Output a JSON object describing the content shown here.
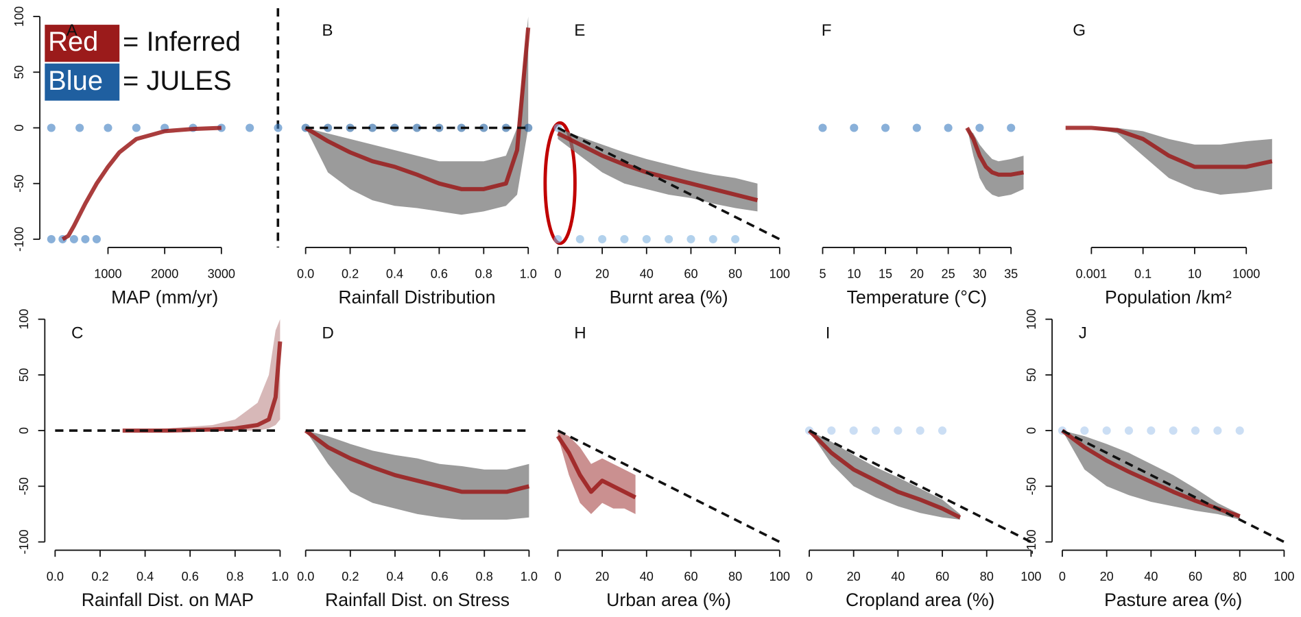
{
  "legend": [
    {
      "label": "Red",
      "text": "= Inferred",
      "color": "#9b1b1b"
    },
    {
      "label": "Blue",
      "text": "= JULES",
      "color": "#1f5fa0"
    }
  ],
  "chart_data": [
    {
      "type": "line",
      "label": "A",
      "xlabel": "MAP (mm/yr)",
      "xlim": [
        -100,
        4100
      ],
      "xticks": [
        1000,
        2000,
        3000
      ],
      "ylim": [
        -100,
        100
      ],
      "yticks": [
        -100,
        -50,
        0,
        50,
        100
      ],
      "x": [
        200,
        300,
        400,
        600,
        800,
        1000,
        1200,
        1500,
        2000,
        2500,
        3000
      ],
      "series": [
        {
          "color": "#9b1b1b",
          "values": [
            -100,
            -97,
            -88,
            -68,
            -50,
            -35,
            -22,
            -10,
            -3,
            -1,
            0
          ]
        }
      ],
      "points": {
        "color": "#3a7cc0",
        "x": [
          0,
          500,
          1000,
          1500,
          2000,
          2500,
          3000,
          3500,
          4000,
          0,
          200,
          400,
          600,
          800
        ],
        "values": [
          0,
          0,
          0,
          0,
          0,
          0,
          0,
          0,
          0,
          -100,
          -100,
          -100,
          -100,
          -100
        ]
      }
    },
    {
      "type": "line",
      "label": "B",
      "xlabel": "Rainfall Distribution",
      "xlim": [
        -0.02,
        1.02
      ],
      "xticks": [
        {
          "value": 0,
          "label": "0.0"
        },
        0.2,
        0.4,
        0.6,
        0.8,
        {
          "value": 1,
          "label": "1.0"
        }
      ],
      "ylim": [
        -100,
        100
      ],
      "x": [
        0,
        0.1,
        0.2,
        0.3,
        0.4,
        0.5,
        0.6,
        0.7,
        0.8,
        0.9,
        0.95,
        1
      ],
      "bands": [
        {
          "color": "#7a7a7a",
          "lower": [
            0,
            -40,
            -55,
            -65,
            -70,
            -72,
            -75,
            -78,
            -75,
            -70,
            -60,
            0
          ],
          "upper": [
            0,
            -5,
            -10,
            -15,
            -20,
            -25,
            -30,
            -30,
            -30,
            -25,
            0,
            100
          ]
        }
      ],
      "series": [
        {
          "color": "#9b1b1b",
          "values": [
            0,
            -12,
            -22,
            -30,
            -35,
            -42,
            -50,
            -55,
            -55,
            -50,
            -20,
            90
          ]
        }
      ],
      "reference": {
        "x": [
          0,
          1
        ],
        "values": [
          0,
          0
        ]
      },
      "points": {
        "color": "#1f5fa0",
        "x": [
          0,
          0.1,
          0.2,
          0.3,
          0.4,
          0.5,
          0.6,
          0.7,
          0.8,
          0.9,
          1
        ],
        "values": [
          0,
          0,
          0,
          0,
          0,
          0,
          0,
          0,
          0,
          0,
          0
        ]
      }
    },
    {
      "type": "line",
      "label": "E",
      "xlabel": "Burnt area (%)",
      "xlim": [
        -2,
        102
      ],
      "xticks": [
        0,
        20,
        40,
        60,
        80,
        100
      ],
      "ylim": [
        -100,
        100
      ],
      "x": [
        0,
        10,
        20,
        30,
        40,
        50,
        60,
        70,
        80,
        90
      ],
      "bands": [
        {
          "color": "#7a7a7a",
          "lower": [
            -10,
            -25,
            -40,
            -50,
            -55,
            -60,
            -63,
            -68,
            -72,
            -75
          ],
          "upper": [
            0,
            -8,
            -15,
            -22,
            -28,
            -33,
            -38,
            -42,
            -45,
            -50
          ]
        }
      ],
      "series": [
        {
          "color": "#9b1b1b",
          "values": [
            -5,
            -15,
            -25,
            -33,
            -40,
            -45,
            -50,
            -55,
            -60,
            -65
          ]
        }
      ],
      "reference": {
        "x": [
          0,
          100
        ],
        "values": [
          0,
          -100
        ]
      },
      "points": {
        "color": "#7fb2e0",
        "x": [
          0,
          0,
          10,
          20,
          30,
          40,
          50,
          60,
          70,
          80
        ],
        "values": [
          0,
          -100,
          -100,
          -100,
          -100,
          -100,
          -100,
          -100,
          -100,
          -100
        ]
      }
    },
    {
      "type": "line",
      "label": "F",
      "xlabel": "Temperature (°C)",
      "xlim": [
        1.5,
        38.5
      ],
      "xticks": [
        5,
        10,
        15,
        20,
        25,
        30,
        35
      ],
      "ylim": [
        -100,
        100
      ],
      "x": [
        28,
        29,
        30,
        31,
        32,
        33,
        35,
        37
      ],
      "bands": [
        {
          "color": "#7a7a7a",
          "lower": [
            0,
            -25,
            -45,
            -55,
            -60,
            -62,
            -60,
            -55
          ],
          "upper": [
            0,
            -5,
            -15,
            -22,
            -28,
            -30,
            -28,
            -25
          ]
        }
      ],
      "series": [
        {
          "color": "#9b1b1b",
          "values": [
            0,
            -10,
            -25,
            -35,
            -40,
            -42,
            -42,
            -40
          ]
        }
      ],
      "points": {
        "color": "#3a7cc0",
        "x": [
          5,
          10,
          15,
          20,
          25,
          30,
          35
        ],
        "values": [
          0,
          0,
          0,
          0,
          0,
          0,
          0
        ]
      }
    },
    {
      "type": "line",
      "label": "G",
      "xlabel": "Population /km²",
      "log": true,
      "xlim": [
        3e-05,
        30000
      ],
      "xticks": [
        0.001,
        0.1,
        10,
        1000
      ],
      "ylim": [
        -100,
        100
      ],
      "x": [
        0.0001,
        0.001,
        0.01,
        0.1,
        1,
        10,
        100,
        1000,
        10000
      ],
      "bands": [
        {
          "color": "#7a7a7a",
          "lower": [
            0,
            0,
            -5,
            -25,
            -45,
            -55,
            -60,
            -58,
            -55
          ],
          "upper": [
            0,
            0,
            0,
            -3,
            -10,
            -15,
            -15,
            -12,
            -10
          ]
        }
      ],
      "series": [
        {
          "color": "#9b1b1b",
          "values": [
            0,
            0,
            -2,
            -10,
            -25,
            -35,
            -35,
            -35,
            -30
          ]
        }
      ]
    },
    {
      "type": "line",
      "label": "C",
      "xlabel": "Rainfall Dist. on MAP",
      "xlim": [
        -0.02,
        1.02
      ],
      "xticks": [
        {
          "value": 0,
          "label": "0.0"
        },
        0.2,
        0.4,
        0.6,
        0.8,
        {
          "value": 1,
          "label": "1.0"
        }
      ],
      "ylim": [
        -100,
        100
      ],
      "yticks": [
        -100,
        -50,
        0,
        50,
        100
      ],
      "x": [
        0.3,
        0.5,
        0.7,
        0.8,
        0.9,
        0.95,
        0.98,
        1
      ],
      "bands": [
        {
          "color": "#c9a0a0",
          "lower": [
            0,
            0,
            0,
            0,
            0,
            2,
            5,
            10
          ],
          "upper": [
            0,
            2,
            5,
            10,
            25,
            50,
            90,
            100
          ]
        }
      ],
      "series": [
        {
          "color": "#9b1b1b",
          "values": [
            0,
            0,
            1,
            2,
            5,
            10,
            30,
            80
          ]
        }
      ],
      "reference": {
        "x": [
          0,
          1
        ],
        "values": [
          0,
          0
        ]
      }
    },
    {
      "type": "line",
      "label": "D",
      "xlabel": "Rainfall Dist. on Stress",
      "xlim": [
        -0.02,
        1.02
      ],
      "xticks": [
        {
          "value": 0,
          "label": "0.0"
        },
        0.2,
        0.4,
        0.6,
        0.8,
        {
          "value": 1,
          "label": "1.0"
        }
      ],
      "ylim": [
        -100,
        100
      ],
      "x": [
        0,
        0.1,
        0.2,
        0.3,
        0.4,
        0.5,
        0.6,
        0.7,
        0.8,
        0.9,
        1
      ],
      "bands": [
        {
          "color": "#7a7a7a",
          "lower": [
            0,
            -30,
            -55,
            -65,
            -70,
            -75,
            -78,
            -80,
            -80,
            -80,
            -78
          ],
          "upper": [
            0,
            -5,
            -12,
            -18,
            -22,
            -25,
            -30,
            -32,
            -35,
            -35,
            -30
          ]
        }
      ],
      "series": [
        {
          "color": "#9b1b1b",
          "values": [
            0,
            -15,
            -25,
            -33,
            -40,
            -45,
            -50,
            -55,
            -55,
            -55,
            -50
          ]
        }
      ],
      "reference": {
        "x": [
          0,
          1
        ],
        "values": [
          0,
          0
        ]
      }
    },
    {
      "type": "line",
      "label": "H",
      "xlabel": "Urban area (%)",
      "xlim": [
        -2,
        102
      ],
      "xticks": [
        0,
        20,
        40,
        60,
        80,
        100
      ],
      "ylim": [
        -100,
        100
      ],
      "x": [
        0,
        5,
        10,
        15,
        20,
        25,
        30,
        35
      ],
      "bands": [
        {
          "color": "#b86b6b",
          "lower": [
            -5,
            -40,
            -65,
            -75,
            -65,
            -70,
            -70,
            -75
          ],
          "upper": [
            0,
            -5,
            -15,
            -30,
            -25,
            -30,
            -35,
            -40
          ]
        }
      ],
      "series": [
        {
          "color": "#9b1b1b",
          "values": [
            -5,
            -20,
            -40,
            -55,
            -45,
            -50,
            -55,
            -60
          ]
        }
      ],
      "reference": {
        "x": [
          0,
          100
        ],
        "values": [
          0,
          -100
        ]
      }
    },
    {
      "type": "line",
      "label": "I",
      "xlabel": "Cropland area (%)",
      "xlim": [
        -2,
        102
      ],
      "xticks": [
        0,
        20,
        40,
        60,
        80,
        100
      ],
      "ylim": [
        -100,
        100
      ],
      "x": [
        0,
        10,
        20,
        30,
        40,
        50,
        60,
        68
      ],
      "bands": [
        {
          "color": "#7a7a7a",
          "lower": [
            0,
            -30,
            -50,
            -60,
            -68,
            -74,
            -78,
            -80
          ],
          "upper": [
            0,
            -10,
            -22,
            -33,
            -42,
            -52,
            -62,
            -75
          ]
        }
      ],
      "series": [
        {
          "color": "#9b1b1b",
          "values": [
            0,
            -20,
            -35,
            -45,
            -55,
            -62,
            -70,
            -78
          ]
        }
      ],
      "reference": {
        "x": [
          0,
          100
        ],
        "values": [
          0,
          -100
        ]
      },
      "points": {
        "color": "#a8c8ec",
        "x": [
          0,
          10,
          20,
          30,
          40,
          50,
          60
        ],
        "values": [
          0,
          0,
          0,
          0,
          0,
          0,
          0
        ]
      }
    },
    {
      "type": "line",
      "label": "J",
      "xlabel": "Pasture area (%)",
      "xlim": [
        -2,
        102
      ],
      "xticks": [
        0,
        20,
        40,
        60,
        80,
        100
      ],
      "ylim": [
        -100,
        100
      ],
      "yticks": [
        -100,
        -50,
        0,
        50,
        100
      ],
      "x": [
        0,
        10,
        20,
        30,
        40,
        50,
        60,
        70,
        80
      ],
      "bands": [
        {
          "color": "#7a7a7a",
          "lower": [
            0,
            -35,
            -50,
            -58,
            -64,
            -68,
            -72,
            -75,
            -80
          ],
          "upper": [
            0,
            -5,
            -12,
            -20,
            -30,
            -40,
            -52,
            -65,
            -75
          ]
        }
      ],
      "series": [
        {
          "color": "#9b1b1b",
          "values": [
            0,
            -15,
            -27,
            -37,
            -46,
            -55,
            -63,
            -70,
            -77
          ]
        }
      ],
      "reference": {
        "x": [
          0,
          100
        ],
        "values": [
          0,
          -100
        ]
      },
      "points": {
        "color": "#a8c8ec",
        "x": [
          0,
          10,
          20,
          30,
          40,
          50,
          60,
          70,
          80
        ],
        "values": [
          0,
          0,
          0,
          0,
          0,
          0,
          0,
          0,
          0
        ]
      }
    }
  ]
}
